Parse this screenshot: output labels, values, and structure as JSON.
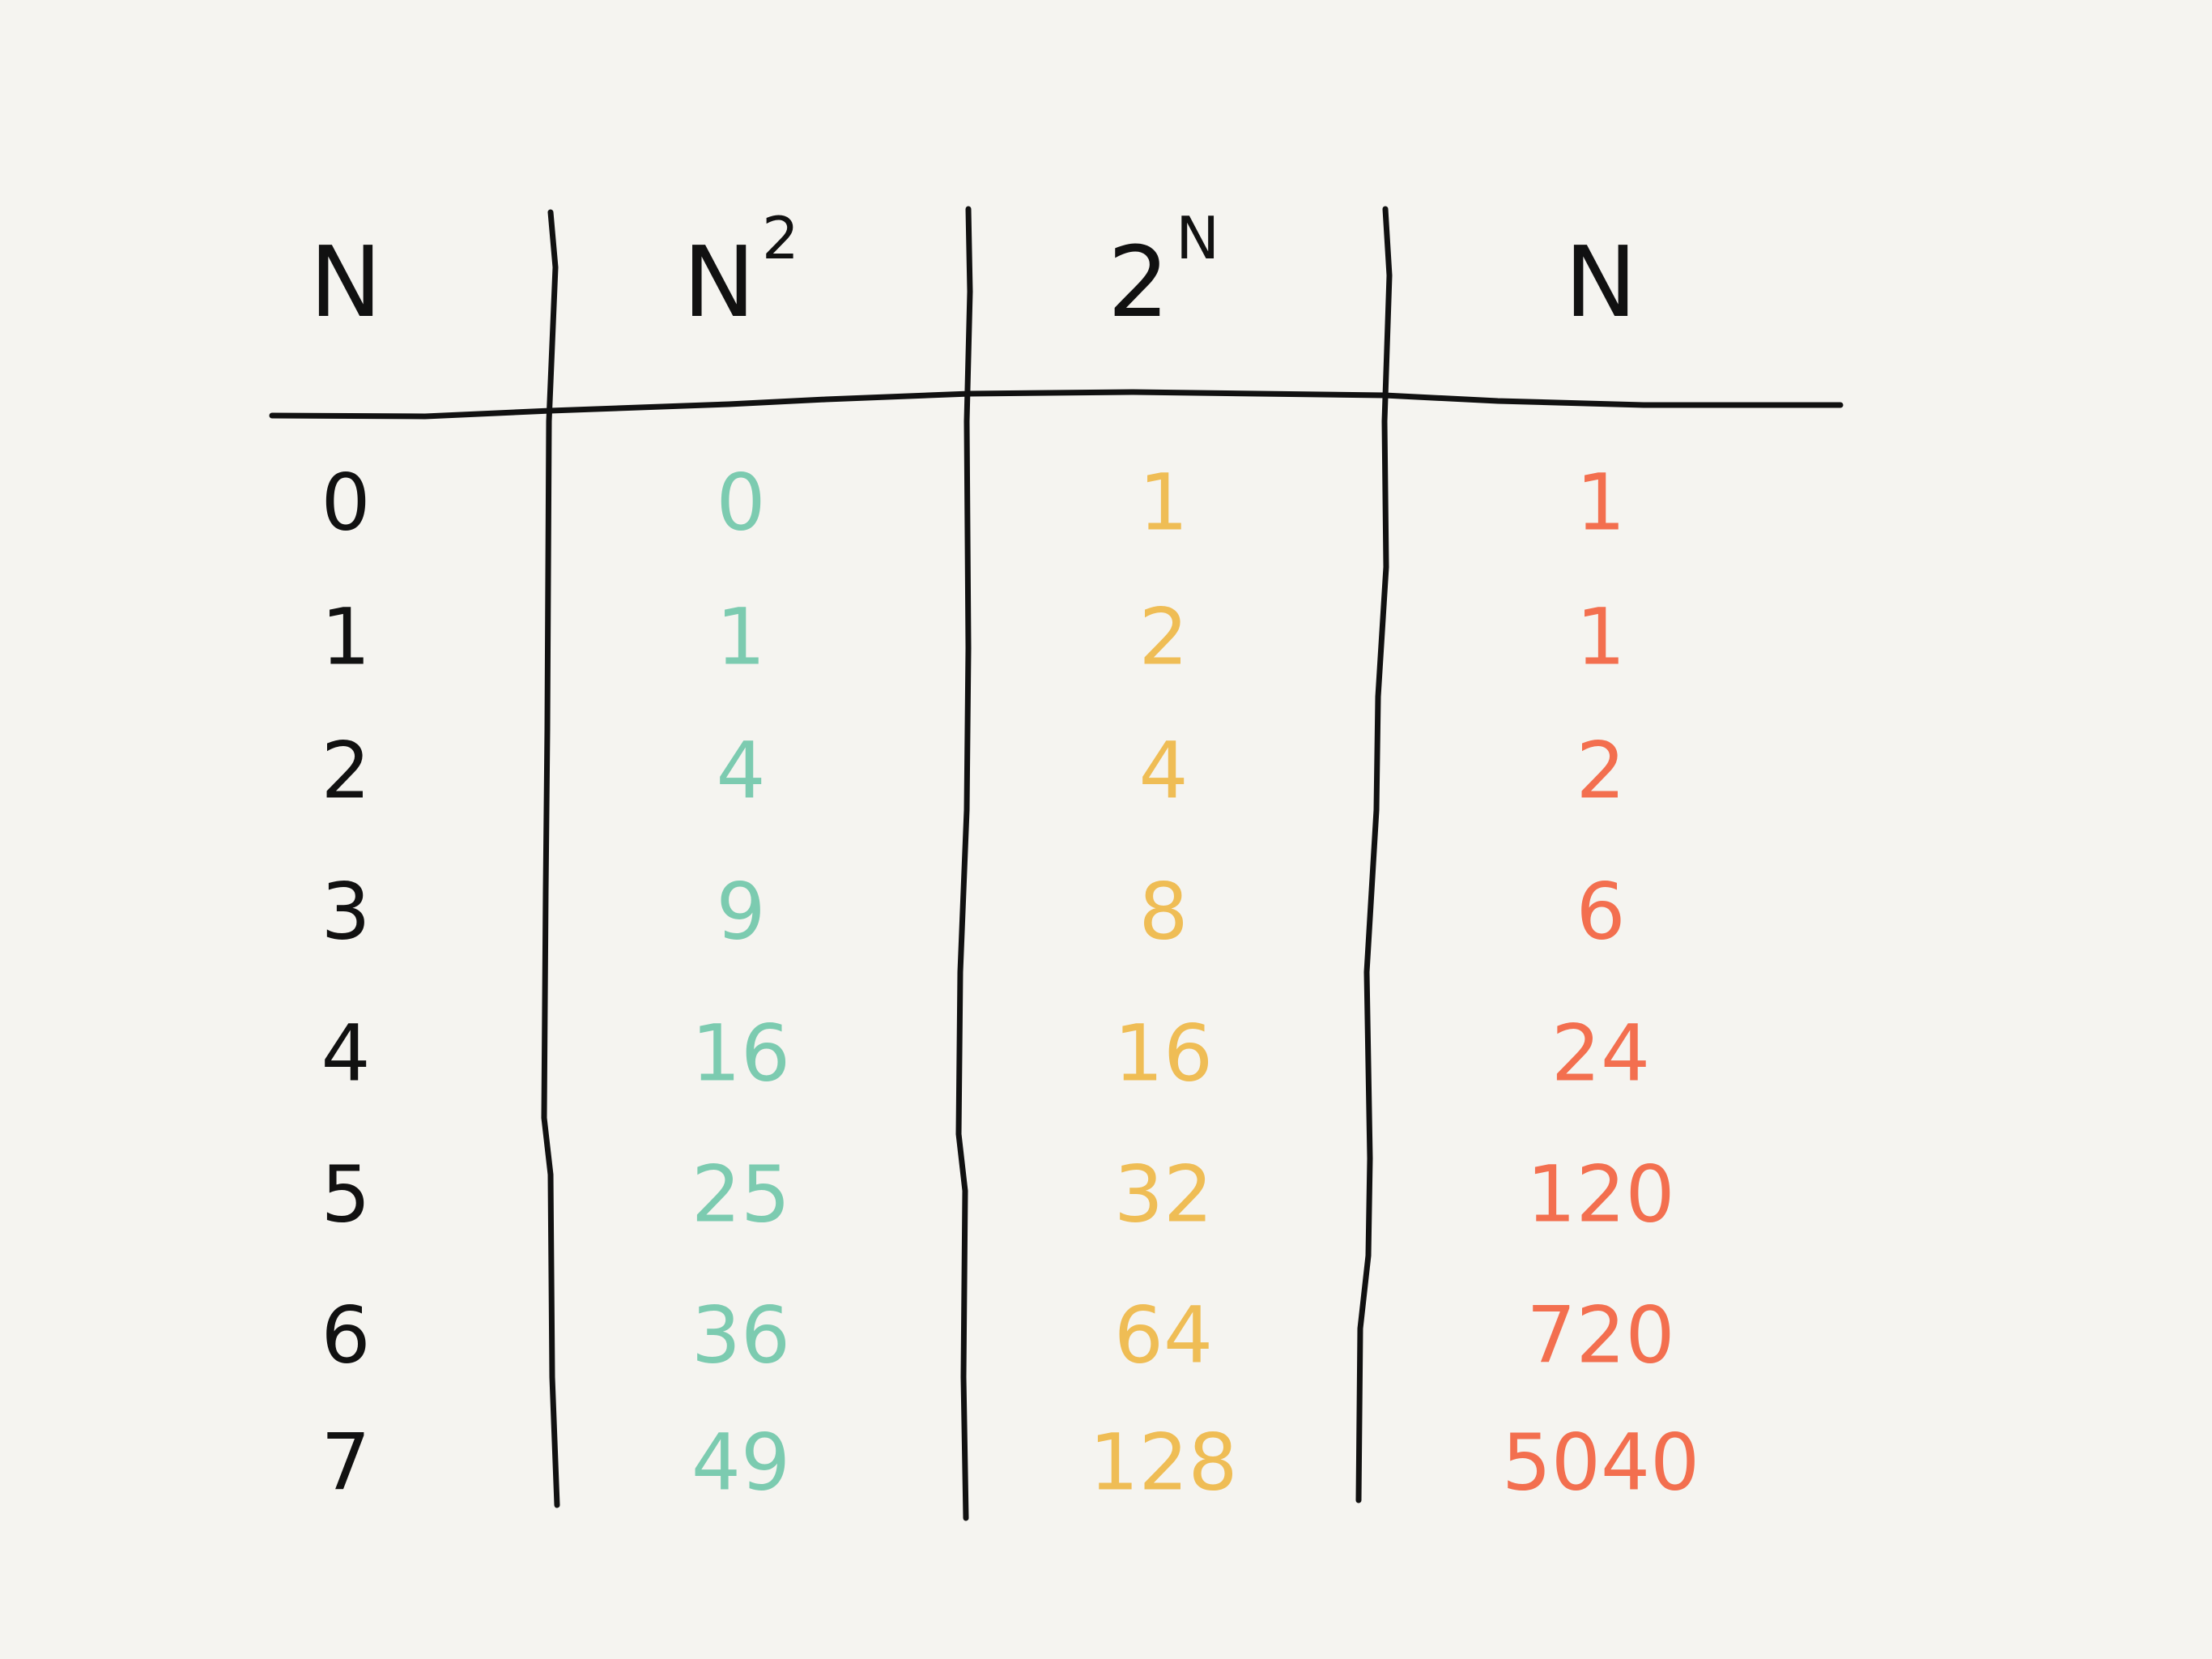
{
  "table": {
    "header": [
      {
        "text": "N"
      },
      {
        "text": "N",
        "sup": "2"
      },
      {
        "text": "2",
        "sup": "N"
      },
      {
        "text": "N"
      }
    ],
    "rows": [
      [
        0,
        0,
        1,
        1
      ],
      [
        1,
        1,
        2,
        1
      ],
      [
        2,
        4,
        4,
        2
      ],
      [
        3,
        9,
        8,
        6
      ],
      [
        4,
        16,
        16,
        24
      ],
      [
        5,
        25,
        32,
        120
      ],
      [
        6,
        36,
        64,
        720
      ],
      [
        7,
        49,
        128,
        5040
      ]
    ]
  }
}
